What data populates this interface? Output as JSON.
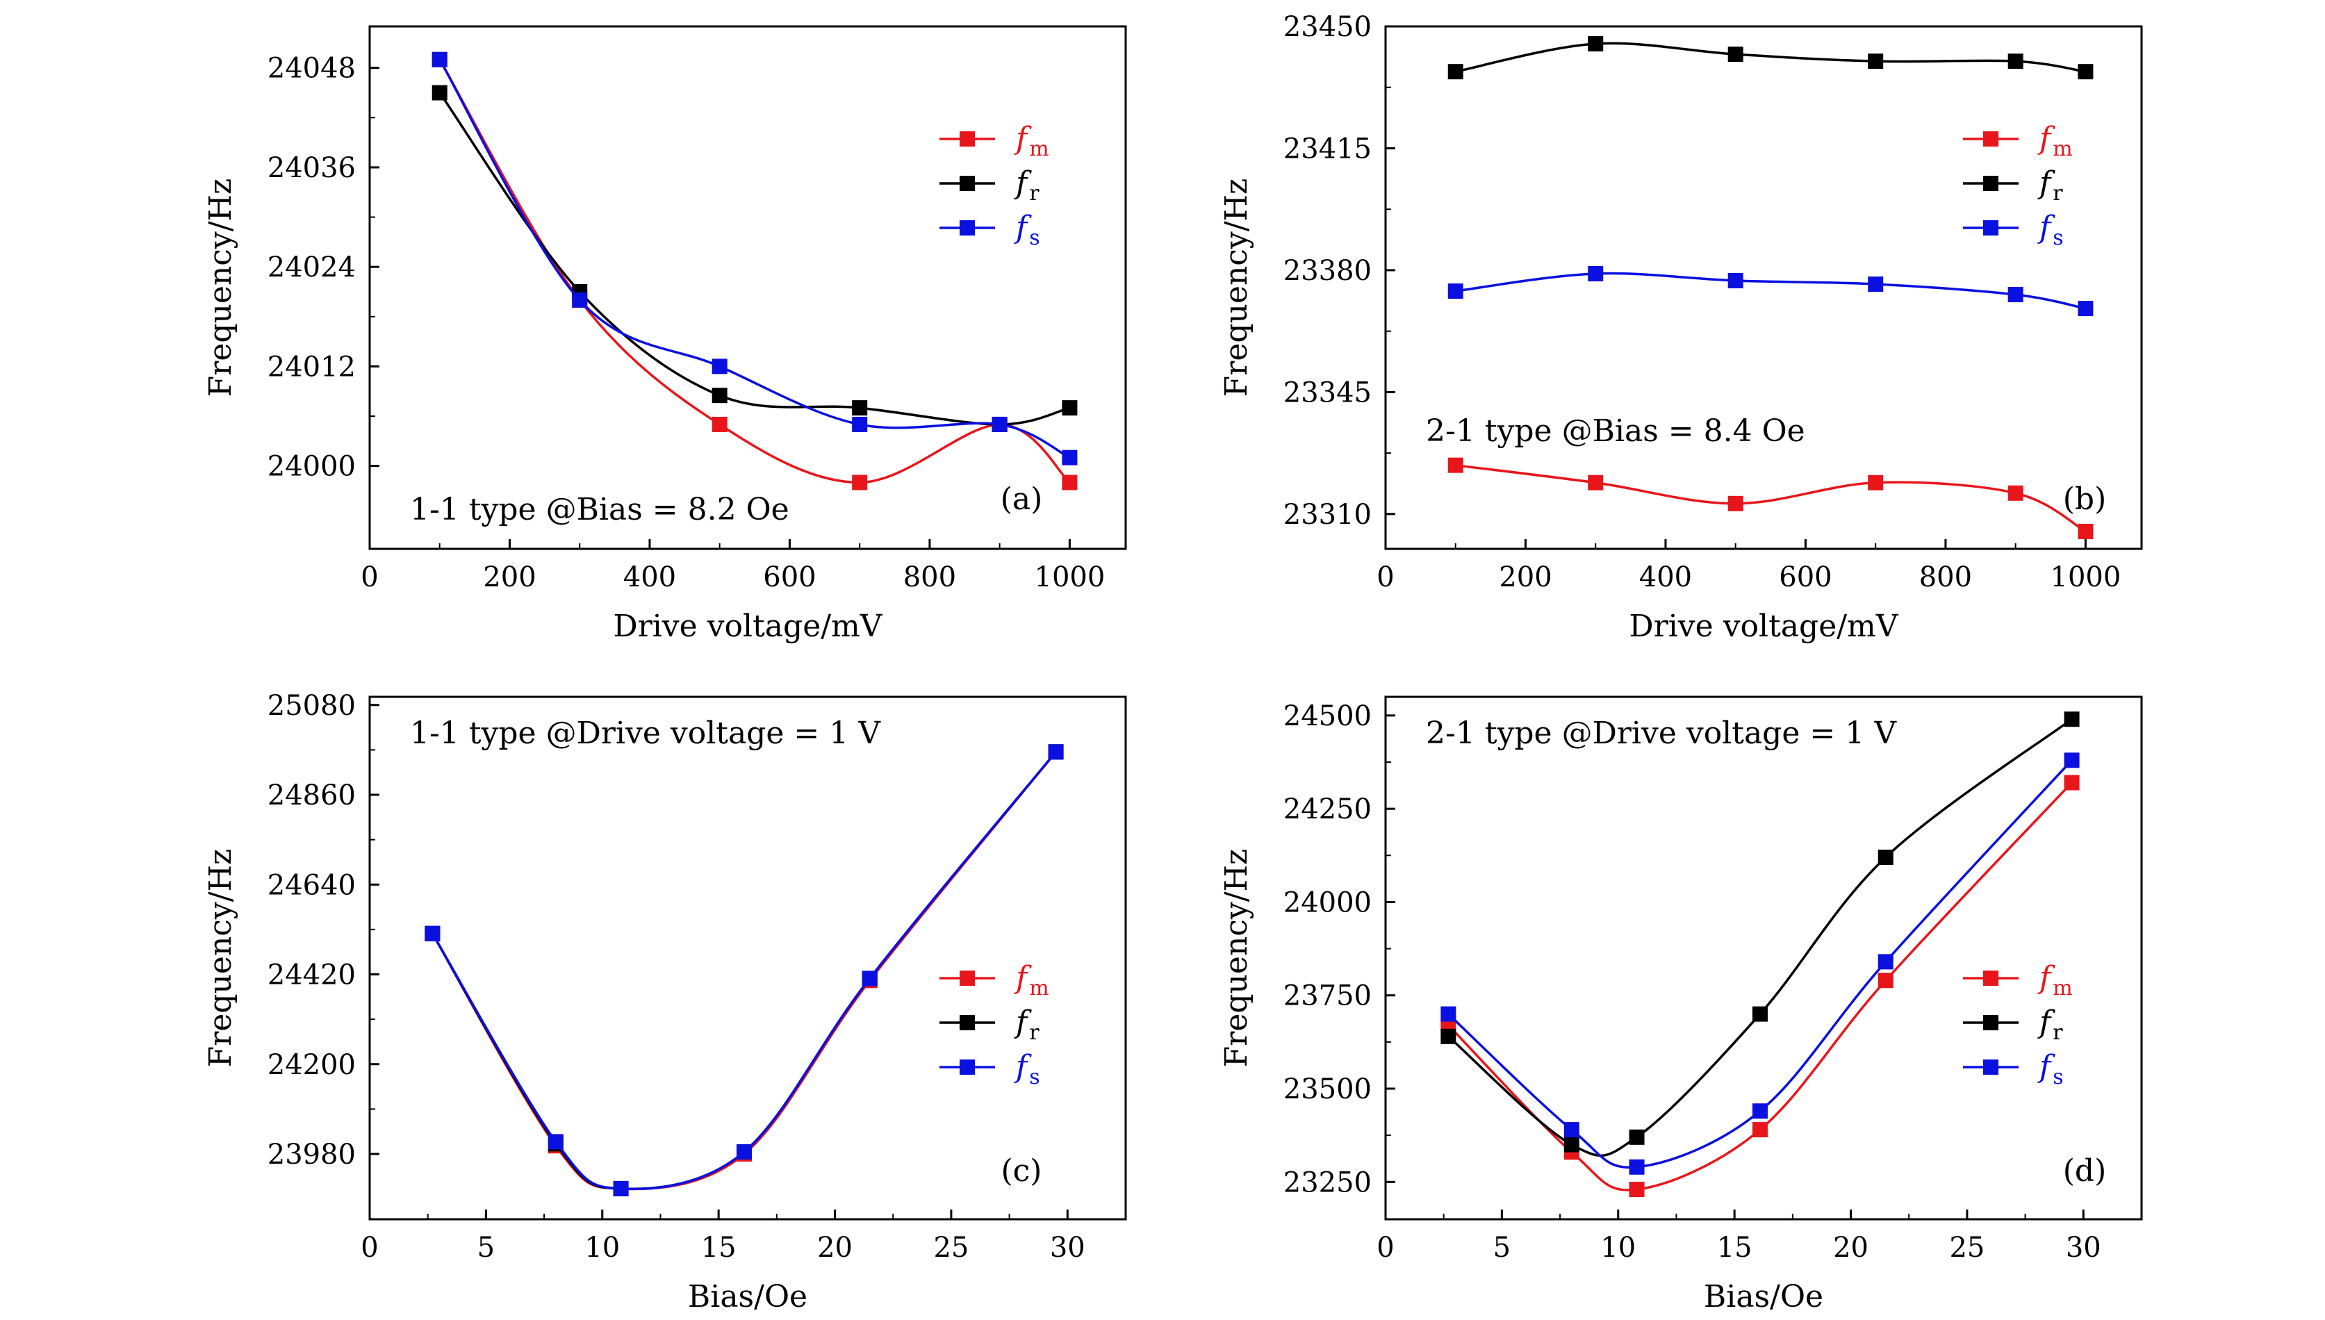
{
  "colors": {
    "fm": "#e8161b",
    "fr": "#000000",
    "fs": "#0a10e0",
    "axis": "#000000",
    "background": "#ffffff"
  },
  "chart_data": [
    {
      "type": "line",
      "panel": "(a)",
      "annotation": "1-1 type @Bias = 8.2 Oe",
      "xlabel": "Drive voltage/mV",
      "ylabel": "Frequency/Hz",
      "xlim": [
        0,
        1080
      ],
      "ylim": [
        23990,
        24053
      ],
      "xticks": [
        0,
        200,
        400,
        600,
        800,
        1000
      ],
      "yticks": [
        24000,
        24012,
        24024,
        24036,
        24048
      ],
      "legend_position": "top-right",
      "x": [
        100,
        300,
        500,
        700,
        900,
        1000
      ],
      "series": [
        {
          "key": "fm",
          "name": "f",
          "sub": "m",
          "values": [
            24049,
            24020,
            24005,
            23998,
            24005,
            23998
          ]
        },
        {
          "key": "fr",
          "name": "f",
          "sub": "r",
          "values": [
            24045,
            24021,
            24008.5,
            24007,
            24005,
            24007
          ]
        },
        {
          "key": "fs",
          "name": "f",
          "sub": "s",
          "values": [
            24049,
            24020,
            24012,
            24005,
            24005,
            24001
          ]
        }
      ]
    },
    {
      "type": "line",
      "panel": "(b)",
      "annotation": "2-1 type @Bias = 8.4 Oe",
      "xlabel": "Drive voltage/mV",
      "ylabel": "Frequency/Hz",
      "xlim": [
        0,
        1080
      ],
      "ylim": [
        23300,
        23450
      ],
      "xticks": [
        0,
        200,
        400,
        600,
        800,
        1000
      ],
      "yticks": [
        23310,
        23345,
        23380,
        23415,
        23450
      ],
      "legend_position": "top-right",
      "x": [
        100,
        300,
        500,
        700,
        900,
        1000
      ],
      "series": [
        {
          "key": "fm",
          "name": "f",
          "sub": "m",
          "values": [
            23324,
            23319,
            23313,
            23319,
            23316,
            23305
          ]
        },
        {
          "key": "fr",
          "name": "f",
          "sub": "r",
          "values": [
            23437,
            23445,
            23442,
            23440,
            23440,
            23437
          ]
        },
        {
          "key": "fs",
          "name": "f",
          "sub": "s",
          "values": [
            23374,
            23379,
            23377,
            23376,
            23373,
            23369
          ]
        }
      ]
    },
    {
      "type": "line",
      "panel": "(c)",
      "annotation": "1-1 type @Drive voltage = 1 V",
      "xlabel": "Bias/Oe",
      "ylabel": "Frequency/Hz",
      "xlim": [
        0,
        32.5
      ],
      "ylim": [
        23820,
        25100
      ],
      "xticks": [
        0,
        5,
        10,
        15,
        20,
        25,
        30
      ],
      "yticks": [
        23980,
        24200,
        24420,
        24640,
        24860,
        25080
      ],
      "legend_position": "center-right",
      "x": [
        2.7,
        8.0,
        10.8,
        16.1,
        21.5,
        29.5
      ],
      "series": [
        {
          "key": "fm",
          "name": "f",
          "sub": "m",
          "values": [
            24520,
            24000,
            23895,
            23980,
            24405,
            24965
          ]
        },
        {
          "key": "fr",
          "name": "f",
          "sub": "r",
          "values": [
            24520,
            24005,
            23895,
            23985,
            24410,
            24965
          ]
        },
        {
          "key": "fs",
          "name": "f",
          "sub": "s",
          "values": [
            24520,
            24010,
            23895,
            23985,
            24410,
            24965
          ]
        }
      ]
    },
    {
      "type": "line",
      "panel": "(d)",
      "annotation": "2-1 type @Drive voltage = 1 V",
      "xlabel": "Bias/Oe",
      "ylabel": "Frequency/Hz",
      "xlim": [
        0,
        32.5
      ],
      "ylim": [
        23150,
        24550
      ],
      "xticks": [
        0,
        5,
        10,
        15,
        20,
        25,
        30
      ],
      "yticks": [
        23250,
        23500,
        23750,
        24000,
        24250,
        24500
      ],
      "legend_position": "center-right",
      "x": [
        2.7,
        8.0,
        10.8,
        16.1,
        21.5,
        29.5
      ],
      "series": [
        {
          "key": "fm",
          "name": "f",
          "sub": "m",
          "values": [
            23670,
            23330,
            23230,
            23390,
            23790,
            24320
          ]
        },
        {
          "key": "fr",
          "name": "f",
          "sub": "r",
          "values": [
            23640,
            23350,
            23370,
            23700,
            24120,
            24490
          ]
        },
        {
          "key": "fs",
          "name": "f",
          "sub": "s",
          "values": [
            23700,
            23390,
            23290,
            23440,
            23840,
            24380
          ]
        }
      ]
    }
  ]
}
